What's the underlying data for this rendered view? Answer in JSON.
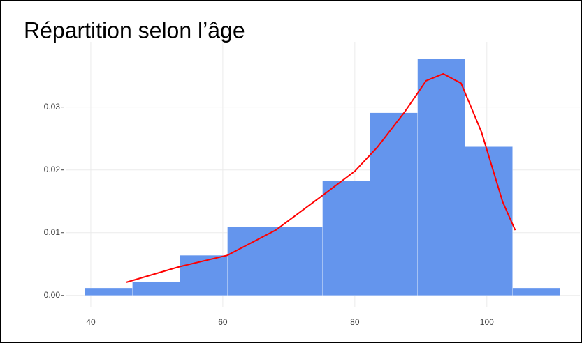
{
  "chart_data": {
    "type": "histogram",
    "title": "Répartition selon l’âge",
    "bins": [
      39.1,
      46.3,
      53.5,
      60.7,
      67.9,
      75.1,
      82.3,
      89.5,
      96.7,
      103.9,
      111.1
    ],
    "values": [
      0.0012,
      0.0022,
      0.0064,
      0.0109,
      0.0109,
      0.0183,
      0.0291,
      0.0377,
      0.0237,
      0.0012
    ],
    "color": "#6495ed",
    "density": {
      "color": "#ff0000",
      "x": [
        45.4,
        53.5,
        60.7,
        68.0,
        75.2,
        80.0,
        83.4,
        87.6,
        90.8,
        93.4,
        96.1,
        99.2,
        102.4,
        104.3
      ],
      "values": [
        0.0021,
        0.0046,
        0.0064,
        0.0104,
        0.016,
        0.0198,
        0.0236,
        0.0293,
        0.0342,
        0.0353,
        0.0338,
        0.026,
        0.0149,
        0.0104
      ]
    },
    "xlim": [
      36.3,
      114.1
    ],
    "ylim": [
      -0.0018,
      0.0404
    ],
    "xticks": [
      40,
      60,
      80,
      100
    ],
    "yticks": [
      {
        "value": 0,
        "label": "0.00"
      },
      0.01,
      0.02,
      0.03
    ],
    "grid": true
  }
}
